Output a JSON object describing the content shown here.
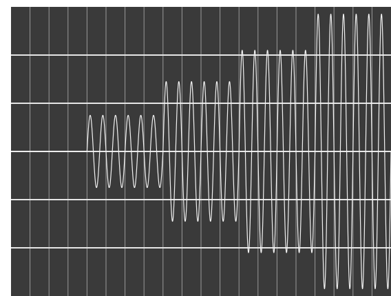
{
  "colors": {
    "background": "#3a3a3a",
    "page": "#ffffff",
    "grid_minor": "#9a9a9a",
    "grid_major": "#e6e6e6",
    "trace": "#f2f2f2"
  },
  "chart_data": {
    "type": "line",
    "title": "",
    "xlabel": "",
    "ylabel": "",
    "x_divisions": 20,
    "y_divisions": 6,
    "ylim": [
      -3,
      3
    ],
    "grid": true,
    "series": [
      {
        "signal": "sine burst",
        "segments": [
          {
            "x_start": 4.0,
            "x_end": 8.0,
            "amplitude": 0.75,
            "cycles": 6
          },
          {
            "x_start": 8.0,
            "x_end": 12.0,
            "amplitude": 1.45,
            "cycles": 6
          },
          {
            "x_start": 12.0,
            "x_end": 16.0,
            "amplitude": 2.1,
            "cycles": 6
          },
          {
            "x_start": 16.0,
            "x_end": 20.0,
            "amplitude": 2.85,
            "cycles": 6
          }
        ]
      }
    ]
  }
}
